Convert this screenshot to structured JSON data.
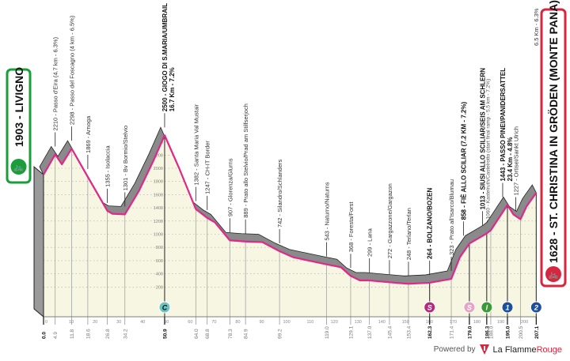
{
  "start": {
    "label": "1903 - LIVIGNO",
    "color": "#1a9e3a",
    "icon": "cyclist-icon"
  },
  "finish": {
    "label": "1628 - ST. CHRISTINA IN GRÖDEN (MONTE PANA)",
    "color": "#d7263d",
    "icon": "cyclist-icon",
    "climb_note": "6.5 Km - 6.3%"
  },
  "footer": {
    "powered_by": "Powered by",
    "brand_a": "La Flamme",
    "brand_b": "Rouge"
  },
  "chart_data": {
    "type": "area",
    "xlabel": "",
    "ylabel": "",
    "xlim": [
      0,
      207.1
    ],
    "ylim": [
      0,
      2500
    ],
    "grid": true,
    "line_color": "#e0288a",
    "fill_color": "#f6f6e2",
    "shadow_color": "#8a8a8a",
    "profile": [
      [
        0,
        1903
      ],
      [
        4.9,
        2210
      ],
      [
        7.7,
        2060
      ],
      [
        11.8,
        2298
      ],
      [
        18.6,
        1869
      ],
      [
        26.8,
        1355
      ],
      [
        29,
        1310
      ],
      [
        34.2,
        1301
      ],
      [
        40,
        1650
      ],
      [
        46,
        2100
      ],
      [
        50.9,
        2500
      ],
      [
        57,
        2000
      ],
      [
        64.0,
        1382
      ],
      [
        68.8,
        1247
      ],
      [
        72,
        1180
      ],
      [
        78.3,
        907
      ],
      [
        84.9,
        889
      ],
      [
        92,
        880
      ],
      [
        99.2,
        742
      ],
      [
        105,
        650
      ],
      [
        119.0,
        543
      ],
      [
        125,
        500
      ],
      [
        129.1,
        368
      ],
      [
        133,
        299
      ],
      [
        137.0,
        299
      ],
      [
        145.4,
        272
      ],
      [
        153.4,
        248
      ],
      [
        162.3,
        264
      ],
      [
        171.4,
        323
      ],
      [
        175,
        650
      ],
      [
        179.0,
        858
      ],
      [
        186.3,
        1013
      ],
      [
        188.0,
        1060
      ],
      [
        195.0,
        1443
      ],
      [
        197.5,
        1300
      ],
      [
        200.5,
        1227
      ],
      [
        203,
        1420
      ],
      [
        207.1,
        1628
      ]
    ],
    "y_ticks": [
      200,
      400,
      600,
      800,
      1000,
      1200,
      1400,
      1600,
      1800,
      2000,
      2200,
      2400
    ],
    "x_ticks": [
      0,
      10,
      20,
      30,
      40,
      50,
      60,
      70,
      80,
      90,
      100,
      110,
      120,
      130,
      140,
      150,
      160,
      170,
      180,
      190,
      200
    ],
    "km_marks": [
      {
        "km": 0.0,
        "text": "0.0",
        "bold": true
      },
      {
        "km": 4.9,
        "text": "4.9"
      },
      {
        "km": 11.8,
        "text": "11.8"
      },
      {
        "km": 18.6,
        "text": "18.6"
      },
      {
        "km": 26.8,
        "text": "26.8"
      },
      {
        "km": 34.2,
        "text": "34.2"
      },
      {
        "km": 50.9,
        "text": "50.9",
        "bold": true
      },
      {
        "km": 64.0,
        "text": "64.0"
      },
      {
        "km": 68.8,
        "text": "68.8"
      },
      {
        "km": 78.3,
        "text": "78.3"
      },
      {
        "km": 84.9,
        "text": "84.9"
      },
      {
        "km": 99.2,
        "text": "99.2"
      },
      {
        "km": 119.0,
        "text": "119.0"
      },
      {
        "km": 129.1,
        "text": "129.1"
      },
      {
        "km": 137.0,
        "text": "137.0"
      },
      {
        "km": 145.4,
        "text": "145.4"
      },
      {
        "km": 153.4,
        "text": "153.4"
      },
      {
        "km": 162.3,
        "text": "162.3",
        "bold": true
      },
      {
        "km": 171.4,
        "text": "171.4"
      },
      {
        "km": 179.0,
        "text": "179.0",
        "bold": true
      },
      {
        "km": 186.3,
        "text": "186.3",
        "bold": true
      },
      {
        "km": 188.0,
        "text": "188.0"
      },
      {
        "km": 195.0,
        "text": "195.0",
        "bold": true
      },
      {
        "km": 200.5,
        "text": "200.5"
      },
      {
        "km": 207.1,
        "text": "207.1",
        "bold": true
      }
    ],
    "places": [
      {
        "km": 4.9,
        "elev": 2210,
        "text": "2210 - Passo d'Eira (4.7 km - 6.3%)"
      },
      {
        "km": 11.8,
        "elev": 2298,
        "text": "2298 - Passo del Foscagno (4 km - 6.5%)"
      },
      {
        "km": 18.6,
        "elev": 1869,
        "text": "1869 - Arnoga"
      },
      {
        "km": 26.8,
        "elev": 1355,
        "text": "1355 - Isolaccia"
      },
      {
        "km": 34.2,
        "elev": 1301,
        "text": "1301 - Bv Bormio/Stelvio"
      },
      {
        "km": 50.9,
        "elev": 2500,
        "text": "2500 - GIOGO DI S.MARIA/UMBRAIL",
        "sub": "16.7 Km - 7.2%",
        "bold": true
      },
      {
        "km": 64.0,
        "elev": 1382,
        "text": "1382 - Santa Maria Val Mustair"
      },
      {
        "km": 68.8,
        "elev": 1247,
        "text": "1247 - CH-IT Border"
      },
      {
        "km": 78.3,
        "elev": 907,
        "text": "907 - Glorenza/Glurns"
      },
      {
        "km": 84.9,
        "elev": 889,
        "text": "889 - Prato allo Stelvio/Prad am Stilfserjoch"
      },
      {
        "km": 99.2,
        "elev": 742,
        "text": "742 - Silandro/Schlanders"
      },
      {
        "km": 119.0,
        "elev": 543,
        "text": "543 - Naturno/Naturns"
      },
      {
        "km": 129.1,
        "elev": 368,
        "text": "368 - Foresta/Forst"
      },
      {
        "km": 137.0,
        "elev": 299,
        "text": "299 - Lana"
      },
      {
        "km": 145.4,
        "elev": 272,
        "text": "272 - Gargazzone/Gargazon"
      },
      {
        "km": 153.4,
        "elev": 248,
        "text": "248 - Terlano/Terlan"
      },
      {
        "km": 162.3,
        "elev": 264,
        "text": "264 - BOLZANO/BOZEN",
        "bold": true
      },
      {
        "km": 171.4,
        "elev": 323,
        "text": "323 - Prato all'Isarco/Blumau"
      },
      {
        "km": 176.5,
        "elev": 858,
        "text": "858 - FIÈ ALLO SCILIAR (7.2 KM - 7.2%)",
        "bold": true
      },
      {
        "km": 184.5,
        "elev": 1013,
        "text": "1013 - SIUSI ALLO SCILIAR/SEIS AM SCHLERN",
        "bold": true
      },
      {
        "km": 186.5,
        "elev": 1060,
        "text": "1060 - Kastelruth/Castelrotto (start final ramp - 5.5 km - 7.2%)",
        "small": true
      },
      {
        "km": 193.0,
        "elev": 1443,
        "text": "1443 - PASSO PINEI/PANIDERSATTEL",
        "sub": "23.4 Km - 4.8%",
        "bold": true
      },
      {
        "km": 198.5,
        "elev": 1227,
        "text": "1227 - Ortisei/Sankt Ulrich"
      }
    ],
    "badges": [
      {
        "km": 50.9,
        "letter": "C",
        "color": "#6cc3c0",
        "name": "feed-zone-badge"
      },
      {
        "km": 162.3,
        "letter": "S",
        "color": "#b5287f",
        "name": "sprint-badge"
      },
      {
        "km": 179.0,
        "letter": "S",
        "color": "#e7a3c3",
        "name": "sprint-badge"
      },
      {
        "km": 186.3,
        "letter": "I",
        "color": "#3a9a3a",
        "name": "intermediate-badge"
      },
      {
        "km": 195.0,
        "letter": "1",
        "color": "#1d4f9a",
        "name": "gpm-cat1-badge"
      },
      {
        "km": 207.1,
        "letter": "2",
        "color": "#1d4f9a",
        "name": "gpm-cat2-badge"
      }
    ]
  }
}
